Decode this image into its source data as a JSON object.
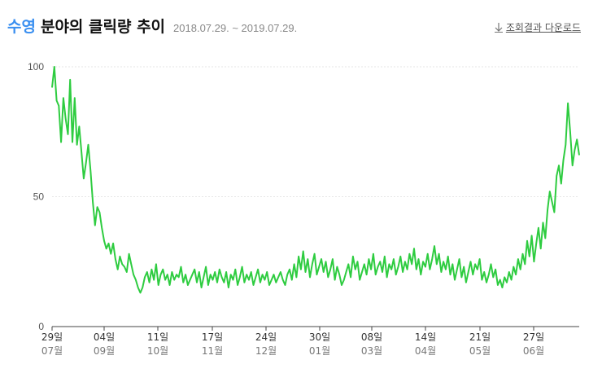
{
  "header": {
    "keyword": "수영",
    "title": "분야의 클릭량 추이",
    "period": "2018.07.29. ~ 2019.07.29.",
    "download_label": "조회결과 다운로드"
  },
  "colors": {
    "line": "#2ecc40",
    "accent": "#3a8ff0",
    "grid": "#e6e6e6",
    "axis": "#444444"
  },
  "chart_data": {
    "type": "line",
    "title": "",
    "ylim": [
      0,
      100
    ],
    "y_ticks": [
      0,
      50,
      100
    ],
    "grid": true,
    "legend": "none",
    "x_ticks": [
      {
        "day": "29일",
        "month": "07월"
      },
      {
        "day": "04일",
        "month": "09월"
      },
      {
        "day": "11일",
        "month": "10월"
      },
      {
        "day": "17일",
        "month": "11월"
      },
      {
        "day": "24일",
        "month": "12월"
      },
      {
        "day": "30일",
        "month": "01월"
      },
      {
        "day": "08일",
        "month": "03월"
      },
      {
        "day": "14일",
        "month": "04월"
      },
      {
        "day": "21일",
        "month": "05월"
      },
      {
        "day": "27일",
        "month": "06월"
      }
    ],
    "series": [
      {
        "values": [
          92,
          100,
          87,
          85,
          71,
          88,
          80,
          74,
          95,
          71,
          88,
          70,
          77,
          67,
          57,
          63,
          70,
          60,
          48,
          39,
          46,
          44,
          38,
          33,
          30,
          32,
          28,
          32,
          26,
          22,
          27,
          24,
          23,
          21,
          28,
          24,
          20,
          18,
          15,
          13,
          15,
          19,
          21,
          17,
          22,
          18,
          24,
          16,
          20,
          22,
          18,
          20,
          16,
          21,
          18,
          20,
          19,
          23,
          17,
          20,
          16,
          18,
          20,
          22,
          17,
          21,
          15,
          19,
          23,
          16,
          20,
          18,
          21,
          17,
          22,
          19,
          17,
          21,
          15,
          20,
          18,
          22,
          16,
          19,
          23,
          17,
          20,
          18,
          21,
          16,
          19,
          22,
          17,
          20,
          18,
          21,
          16,
          18,
          20,
          17,
          19,
          21,
          18,
          16,
          20,
          22,
          18,
          24,
          19,
          27,
          22,
          29,
          21,
          26,
          19,
          24,
          28,
          20,
          23,
          26,
          21,
          25,
          19,
          22,
          26,
          18,
          23,
          20,
          16,
          18,
          21,
          24,
          19,
          27,
          22,
          25,
          18,
          21,
          24,
          20,
          26,
          22,
          28,
          20,
          23,
          25,
          21,
          27,
          19,
          24,
          22,
          26,
          20,
          23,
          27,
          21,
          25,
          22,
          28,
          24,
          30,
          22,
          26,
          20,
          25,
          23,
          28,
          22,
          26,
          31,
          24,
          28,
          21,
          25,
          22,
          27,
          20,
          24,
          18,
          22,
          26,
          19,
          23,
          17,
          21,
          25,
          20,
          24,
          22,
          26,
          18,
          21,
          17,
          20,
          24,
          19,
          22,
          16,
          18,
          15,
          19,
          17,
          21,
          18,
          23,
          20,
          26,
          22,
          28,
          24,
          33,
          27,
          35,
          25,
          32,
          38,
          30,
          40,
          34,
          45,
          52,
          48,
          44,
          58,
          62,
          55,
          64,
          70,
          86,
          75,
          62,
          68,
          72,
          66
        ]
      }
    ]
  }
}
